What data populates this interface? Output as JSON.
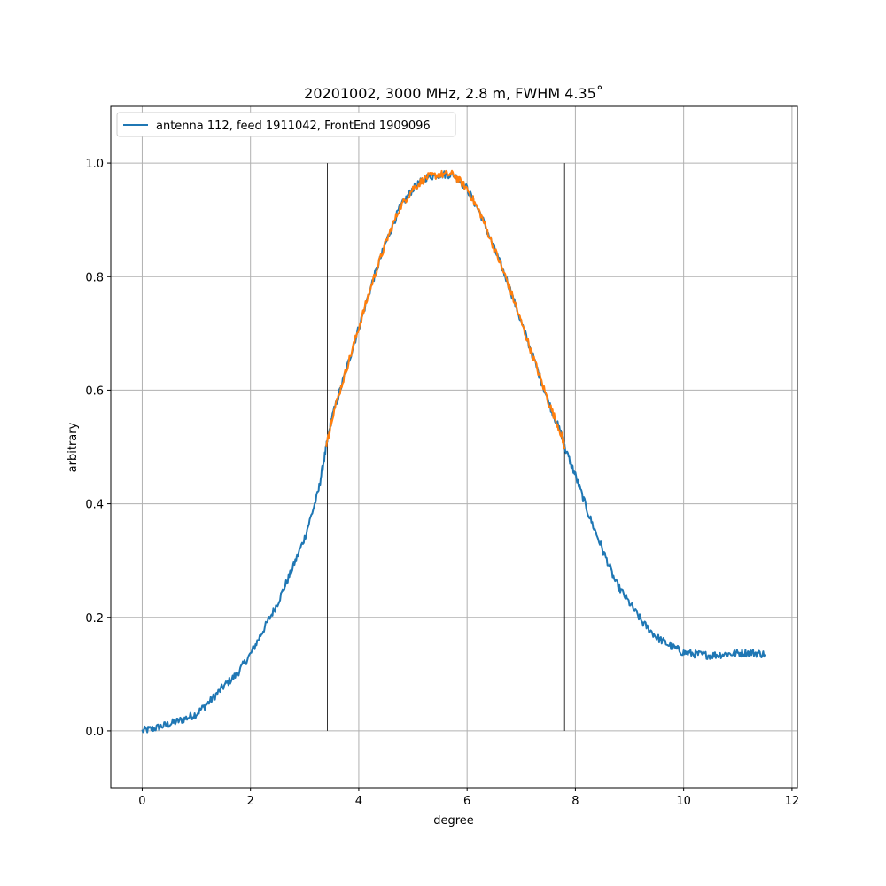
{
  "chart_data": {
    "type": "line",
    "title": "20201002, 3000 MHz, 2.8 m, FWHM 4.35˚",
    "xlabel": "degree",
    "ylabel": "arbitrary",
    "xlim": [
      -0.58,
      12.1
    ],
    "ylim": [
      -0.1,
      1.1
    ],
    "xticks": [
      0,
      2,
      4,
      6,
      8,
      10,
      12
    ],
    "yticks": [
      0.0,
      0.2,
      0.4,
      0.6,
      0.8,
      1.0
    ],
    "xtick_labels": [
      "0",
      "2",
      "4",
      "6",
      "8",
      "10",
      "12"
    ],
    "ytick_labels": [
      "0.0",
      "0.2",
      "0.4",
      "0.6",
      "0.8",
      "1.0"
    ],
    "grid": true,
    "legend_position": "top-left",
    "series": [
      {
        "name": "antenna 112, feed 1911042, FrontEnd 1909096",
        "color": "#1f77b4",
        "role": "full beam profile",
        "x": [
          0,
          0.25,
          0.5,
          0.75,
          1.0,
          1.25,
          1.5,
          1.75,
          2.0,
          2.25,
          2.5,
          2.75,
          3.0,
          3.25,
          3.4,
          3.5,
          3.75,
          4.0,
          4.25,
          4.5,
          4.75,
          5.0,
          5.25,
          5.5,
          5.75,
          6.0,
          6.25,
          6.5,
          6.75,
          7.0,
          7.25,
          7.5,
          7.75,
          7.8,
          8.0,
          8.25,
          8.5,
          8.75,
          9.0,
          9.25,
          9.5,
          9.75,
          10.0,
          10.25,
          10.5,
          10.75,
          11.0,
          11.25,
          11.5
        ],
        "y": [
          0.0,
          0.005,
          0.012,
          0.02,
          0.03,
          0.052,
          0.078,
          0.1,
          0.135,
          0.18,
          0.225,
          0.28,
          0.34,
          0.42,
          0.5,
          0.55,
          0.63,
          0.71,
          0.79,
          0.86,
          0.92,
          0.955,
          0.975,
          0.98,
          0.98,
          0.955,
          0.91,
          0.85,
          0.79,
          0.72,
          0.65,
          0.58,
          0.52,
          0.5,
          0.45,
          0.38,
          0.32,
          0.26,
          0.225,
          0.19,
          0.165,
          0.15,
          0.138,
          0.135,
          0.133,
          0.135,
          0.137,
          0.138,
          0.135
        ]
      },
      {
        "name": "",
        "color": "#ff7f0e",
        "role": "above half maximum",
        "x": [
          3.4,
          3.5,
          3.75,
          4.0,
          4.25,
          4.5,
          4.75,
          5.0,
          5.25,
          5.5,
          5.75,
          6.0,
          6.25,
          6.5,
          6.75,
          7.0,
          7.25,
          7.5,
          7.75,
          7.8
        ],
        "y": [
          0.5,
          0.55,
          0.63,
          0.71,
          0.79,
          0.86,
          0.92,
          0.955,
          0.975,
          0.98,
          0.98,
          0.955,
          0.91,
          0.85,
          0.79,
          0.72,
          0.65,
          0.58,
          0.52,
          0.5
        ]
      }
    ],
    "reference_lines": [
      {
        "orientation": "horizontal",
        "y": 0.5,
        "x_from": 0,
        "x_to": 11.55,
        "color": "#000000"
      },
      {
        "orientation": "vertical",
        "x": 3.42,
        "y_from": 0,
        "y_to": 1.0,
        "color": "#000000"
      },
      {
        "orientation": "vertical",
        "x": 7.8,
        "y_from": 0,
        "y_to": 1.0,
        "color": "#000000"
      }
    ],
    "grid_color": "#b0b0b0"
  }
}
